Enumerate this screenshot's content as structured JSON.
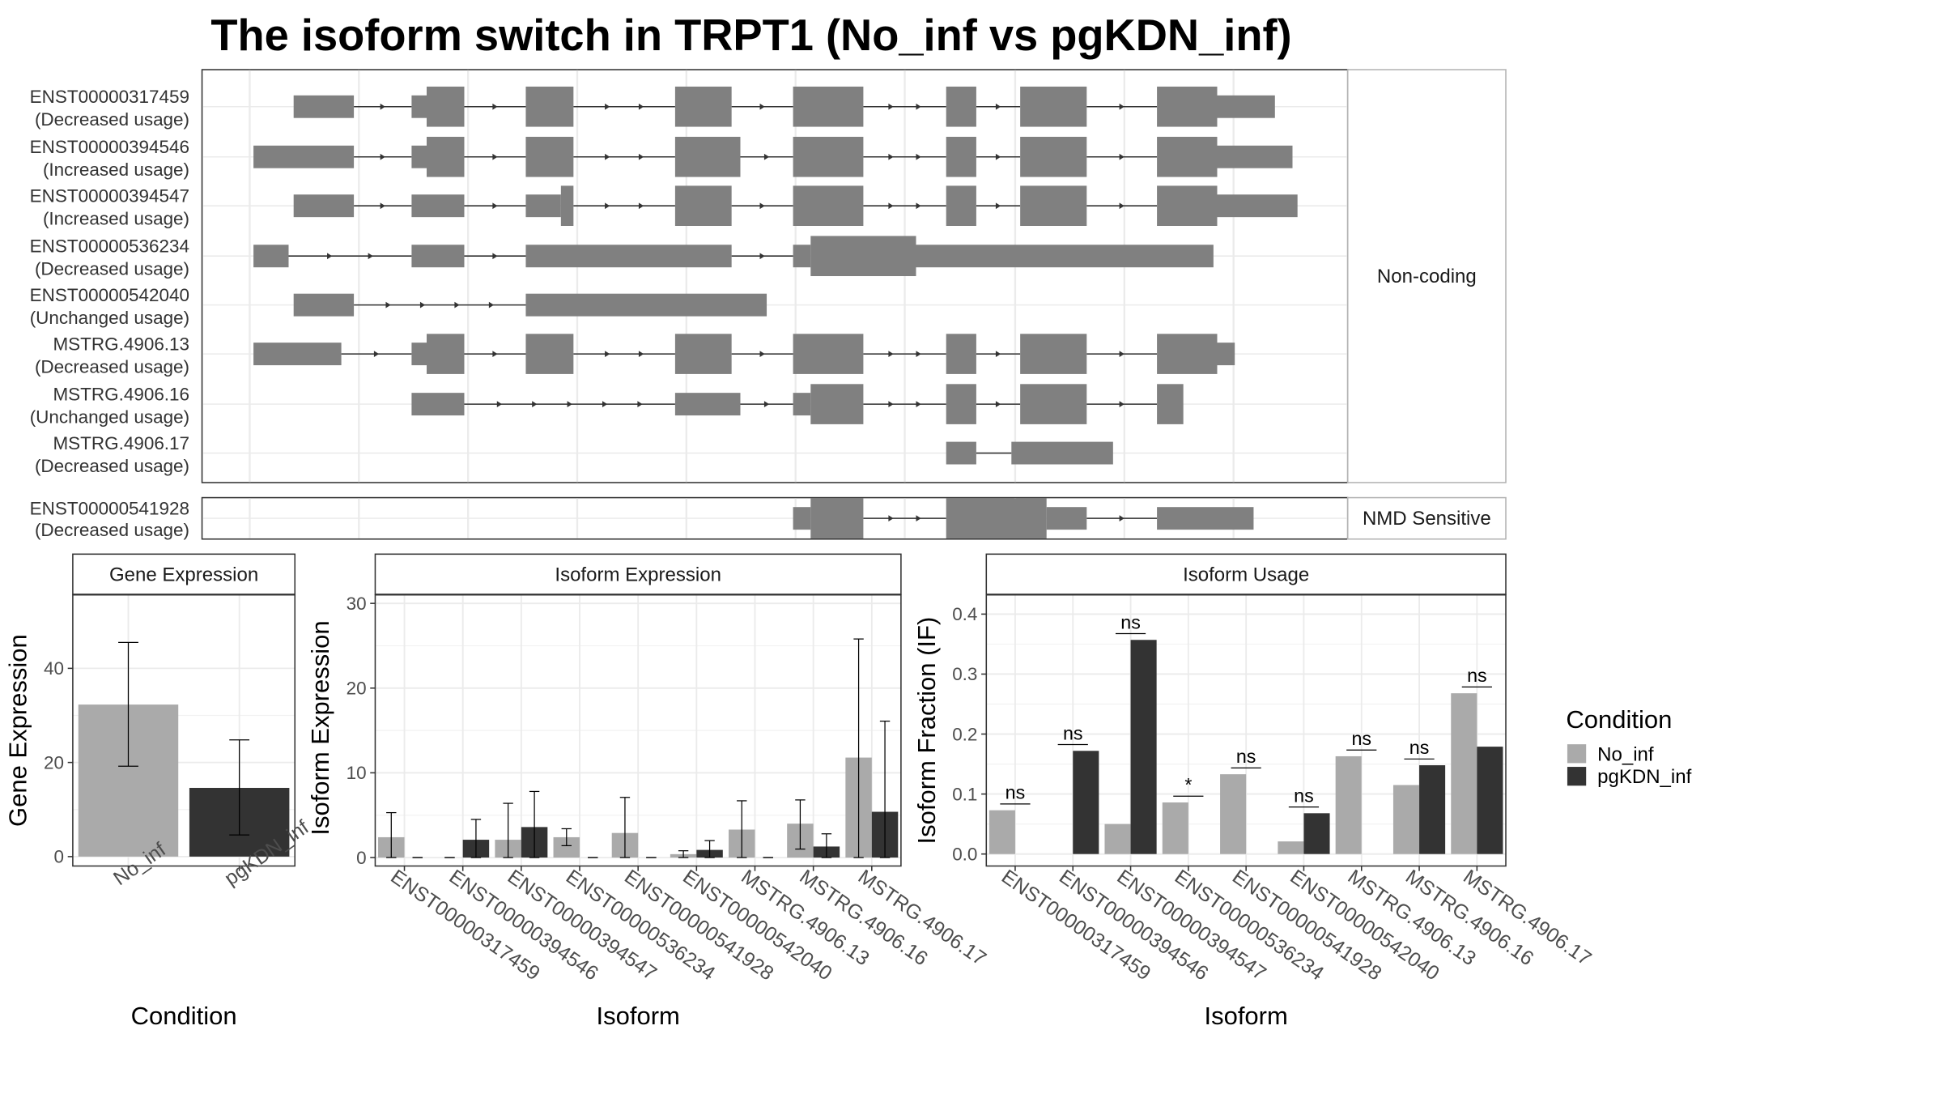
{
  "title": "The isoform switch in TRPT1 (No_inf vs pgKDN_inf)",
  "structure": {
    "section_noncoding": "Non-coding",
    "section_nmd": "NMD Sensitive",
    "isoforms": [
      {
        "id": "ENST00000317459",
        "note": "(Decreased usage)"
      },
      {
        "id": "ENST00000394546",
        "note": "(Increased usage)"
      },
      {
        "id": "ENST00000394547",
        "note": "(Increased usage)"
      },
      {
        "id": "ENST00000536234",
        "note": "(Decreased usage)"
      },
      {
        "id": "ENST00000542040",
        "note": "(Unchanged usage)"
      },
      {
        "id": "MSTRG.4906.13",
        "note": "(Decreased usage)"
      },
      {
        "id": "MSTRG.4906.16",
        "note": "(Unchanged usage)"
      },
      {
        "id": "MSTRG.4906.17",
        "note": "(Decreased usage)"
      }
    ],
    "nmd_isoform": {
      "id": "ENST00000541928",
      "note": "(Decreased usage)"
    }
  },
  "legend": {
    "title": "Condition",
    "items": [
      {
        "label": "No_inf",
        "color": "#aaaaaa"
      },
      {
        "label": "pgKDN_inf",
        "color": "#333333"
      }
    ]
  },
  "chart_data": [
    {
      "type": "bar",
      "title": "Gene Expression",
      "xlabel": "Condition",
      "ylabel": "Gene Expression",
      "categories": [
        "No_inf",
        "pgKDN_inf"
      ],
      "values": [
        32.3,
        14.6
      ],
      "error_low": [
        19.2,
        4.6
      ],
      "error_high": [
        45.5,
        24.8
      ],
      "colors": [
        "#aaaaaa",
        "#333333"
      ],
      "yticks": [
        0,
        20,
        40
      ],
      "ylim": [
        -2,
        55.6
      ]
    },
    {
      "type": "bar",
      "title": "Isoform Expression",
      "xlabel": "Isoform",
      "ylabel": "Isoform Expression",
      "categories": [
        "ENST00000317459",
        "ENST00000394546",
        "ENST00000394547",
        "ENST00000536234",
        "ENST00000541928",
        "ENST00000542040",
        "MSTRG.4906.13",
        "MSTRG.4906.16",
        "MSTRG.4906.17"
      ],
      "series": [
        {
          "name": "No_inf",
          "values": [
            2.4,
            0.0,
            2.1,
            2.4,
            2.9,
            0.4,
            3.3,
            4.0,
            11.8
          ],
          "error_low": [
            0.0,
            0.0,
            0.0,
            1.4,
            0.0,
            0.0,
            0.0,
            1.0,
            0.0
          ],
          "error_high": [
            5.3,
            0.0,
            6.4,
            3.4,
            7.1,
            0.8,
            6.7,
            6.8,
            25.8
          ]
        },
        {
          "name": "pgKDN_inf",
          "values": [
            0.0,
            2.1,
            3.6,
            0.0,
            0.0,
            0.9,
            0.0,
            1.3,
            5.4
          ],
          "error_low": [
            0.0,
            0.0,
            0.0,
            0.0,
            0.0,
            0.0,
            0.0,
            0.0,
            0.0
          ],
          "error_high": [
            0.0,
            4.5,
            7.8,
            0.0,
            0.0,
            2.0,
            0.0,
            2.8,
            16.1
          ]
        }
      ],
      "yticks": [
        0,
        10,
        20,
        30
      ],
      "ylim": [
        -1,
        31
      ]
    },
    {
      "type": "bar",
      "title": "Isoform Usage",
      "xlabel": "Isoform",
      "ylabel": "Isoform Fraction (IF)",
      "categories": [
        "ENST00000317459",
        "ENST00000394546",
        "ENST00000394547",
        "ENST00000536234",
        "ENST00000541928",
        "ENST00000542040",
        "MSTRG.4906.13",
        "MSTRG.4906.16",
        "MSTRG.4906.17"
      ],
      "series": [
        {
          "name": "No_inf",
          "values": [
            0.073,
            0.0,
            0.05,
            0.086,
            0.133,
            0.021,
            0.163,
            0.115,
            0.268
          ]
        },
        {
          "name": "pgKDN_inf",
          "values": [
            0.0,
            0.172,
            0.357,
            0.0,
            0.0,
            0.068,
            0.0,
            0.148,
            0.179
          ]
        }
      ],
      "significance": [
        "ns",
        "ns",
        "ns",
        "*",
        "ns",
        "ns",
        "ns",
        "ns",
        "ns"
      ],
      "yticks": [
        0.0,
        0.1,
        0.2,
        0.3,
        0.4
      ],
      "ylim": [
        -0.02,
        0.432
      ]
    }
  ]
}
